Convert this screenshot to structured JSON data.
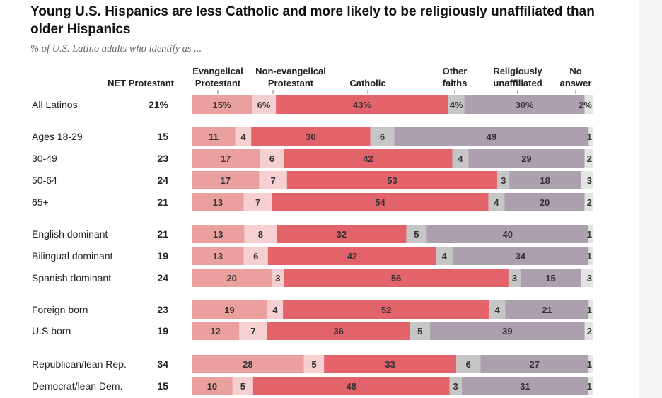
{
  "title": "Young U.S. Hispanics are less Catholic and more likely to be religiously unaffiliated than older Hispanics",
  "subtitle": "% of U.S. Latino adults who identify as ...",
  "colors": {
    "evangelical": "#eba0a0",
    "nonevangelical": "#f6d0d0",
    "catholic": "#e3636b",
    "other": "#c6c6c6",
    "unaffiliated": "#ac9fae",
    "noanswer": "#e4e4e4"
  },
  "chart_data": {
    "type": "bar",
    "orientation": "horizontal-stacked",
    "net_header": "NET Protestant",
    "series": [
      {
        "key": "evangelical",
        "name": "Evangelical Protestant",
        "header_lines": [
          "Evangelical",
          "Protestant"
        ]
      },
      {
        "key": "nonevangelical",
        "name": "Non-evangelical Protestant",
        "header_lines": [
          "Non-evangelical",
          "Protestant"
        ]
      },
      {
        "key": "catholic",
        "name": "Catholic",
        "header_lines": [
          "Catholic"
        ]
      },
      {
        "key": "other",
        "name": "Other faiths",
        "header_lines": [
          "Other",
          "faiths"
        ]
      },
      {
        "key": "unaffiliated",
        "name": "Religiously unaffiliated",
        "header_lines": [
          "Religiously",
          "unaffiliated"
        ]
      },
      {
        "key": "noanswer",
        "name": "No answer",
        "header_lines": [
          "No",
          "answer"
        ]
      }
    ],
    "rows": [
      {
        "label": "All Latinos",
        "net": "21%",
        "values": [
          15,
          6,
          43,
          4,
          30,
          2
        ],
        "labels": [
          "15%",
          "6%",
          "43%",
          "4%",
          "30%",
          "2%"
        ]
      },
      {
        "label": "Ages 18-29",
        "net": "15",
        "values": [
          11,
          4,
          30,
          6,
          49,
          1
        ],
        "labels": [
          "11",
          "4",
          "30",
          "6",
          "49",
          "1"
        ]
      },
      {
        "label": "30-49",
        "net": "23",
        "values": [
          17,
          6,
          42,
          4,
          29,
          2
        ],
        "labels": [
          "17",
          "6",
          "42",
          "4",
          "29",
          "2"
        ]
      },
      {
        "label": "50-64",
        "net": "24",
        "values": [
          17,
          7,
          53,
          3,
          18,
          3
        ],
        "labels": [
          "17",
          "7",
          "53",
          "3",
          "18",
          "3"
        ]
      },
      {
        "label": "65+",
        "net": "21",
        "values": [
          13,
          7,
          54,
          4,
          20,
          2
        ],
        "labels": [
          "13",
          "7",
          "54",
          "4",
          "20",
          "2"
        ]
      },
      {
        "label": "English dominant",
        "net": "21",
        "values": [
          13,
          8,
          32,
          5,
          40,
          1
        ],
        "labels": [
          "13",
          "8",
          "32",
          "5",
          "40",
          "1"
        ]
      },
      {
        "label": "Bilingual dominant",
        "net": "19",
        "values": [
          13,
          6,
          42,
          4,
          34,
          1
        ],
        "labels": [
          "13",
          "6",
          "42",
          "4",
          "34",
          "1"
        ]
      },
      {
        "label": "Spanish dominant",
        "net": "24",
        "values": [
          20,
          3,
          56,
          3,
          15,
          3
        ],
        "labels": [
          "20",
          "3",
          "56",
          "3",
          "15",
          "3"
        ]
      },
      {
        "label": "Foreign born",
        "net": "23",
        "values": [
          19,
          4,
          52,
          4,
          21,
          1
        ],
        "labels": [
          "19",
          "4",
          "52",
          "4",
          "21",
          "1"
        ]
      },
      {
        "label": "U.S born",
        "net": "19",
        "values": [
          12,
          7,
          36,
          5,
          39,
          2
        ],
        "labels": [
          "12",
          "7",
          "36",
          "5",
          "39",
          "2"
        ]
      },
      {
        "label": "Republican/lean Rep.",
        "net": "34",
        "values": [
          28,
          5,
          33,
          6,
          27,
          1
        ],
        "labels": [
          "28",
          "5",
          "33",
          "6",
          "27",
          "1"
        ]
      },
      {
        "label": "Democrat/lean Dem.",
        "net": "15",
        "values": [
          10,
          5,
          48,
          3,
          31,
          1
        ],
        "labels": [
          "10",
          "5",
          "48",
          "3",
          "31",
          "1"
        ]
      }
    ]
  }
}
